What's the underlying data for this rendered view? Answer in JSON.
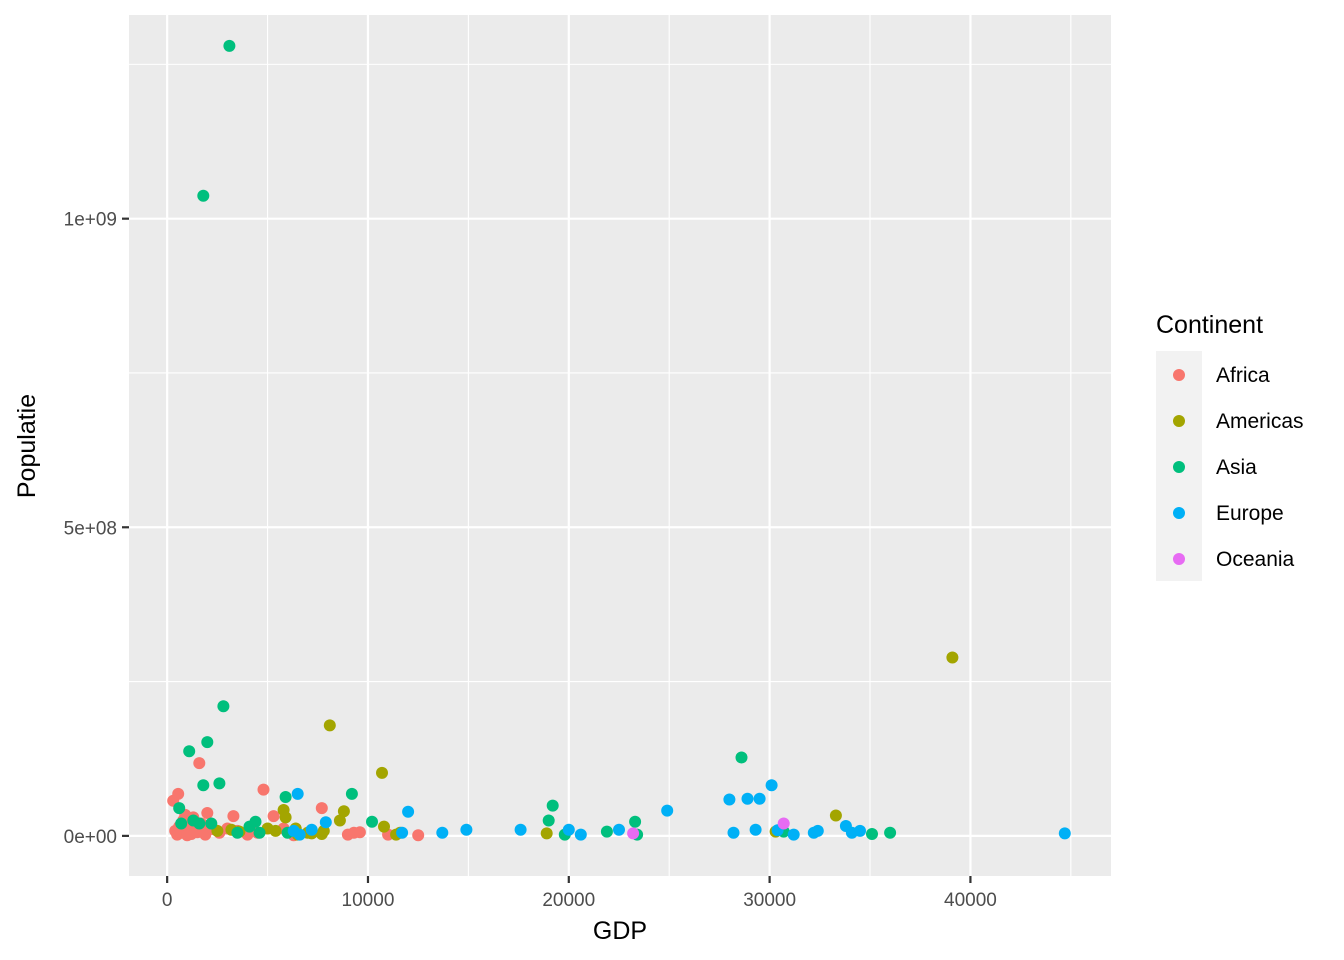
{
  "chart_data": {
    "type": "scatter",
    "xlabel": "GDP",
    "ylabel": "Populatie",
    "xlim": [
      -1900,
      47000
    ],
    "ylim": [
      -65000000,
      1330000000
    ],
    "x_ticks": [
      0,
      10000,
      20000,
      30000,
      40000
    ],
    "x_tick_labels": [
      "0",
      "10000",
      "20000",
      "30000",
      "40000"
    ],
    "y_ticks": [
      0,
      500000000,
      1000000000
    ],
    "y_tick_labels": [
      "0e+00",
      "5e+08",
      "1e+09"
    ],
    "grid": true,
    "legend": {
      "title": "Continent",
      "placement": "right"
    },
    "series": [
      {
        "name": "Africa",
        "color": "#F8766D",
        "points": [
          [
            300,
            57000000
          ],
          [
            550,
            68000000
          ],
          [
            400,
            8000000
          ],
          [
            500,
            2000000
          ],
          [
            600,
            15000000
          ],
          [
            700,
            5000000
          ],
          [
            800,
            25000000
          ],
          [
            900,
            34000000
          ],
          [
            950,
            10000000
          ],
          [
            1000,
            1000000
          ],
          [
            1100,
            20000000
          ],
          [
            1200,
            3000000
          ],
          [
            1300,
            30000000
          ],
          [
            1400,
            12000000
          ],
          [
            1500,
            6000000
          ],
          [
            1600,
            118000000
          ],
          [
            1700,
            20000000
          ],
          [
            1800,
            9000000
          ],
          [
            1900,
            2000000
          ],
          [
            2000,
            37000000
          ],
          [
            2100,
            16000000
          ],
          [
            2300,
            11000000
          ],
          [
            2600,
            5000000
          ],
          [
            3000,
            12000000
          ],
          [
            3300,
            32000000
          ],
          [
            3500,
            8000000
          ],
          [
            4000,
            2000000
          ],
          [
            4500,
            5000000
          ],
          [
            4800,
            75000000
          ],
          [
            5300,
            32000000
          ],
          [
            5800,
            12000000
          ],
          [
            6300,
            1000000
          ],
          [
            7700,
            45000000
          ],
          [
            9000,
            2000000
          ],
          [
            9300,
            5000000
          ],
          [
            9600,
            6000000
          ],
          [
            11000,
            2000000
          ],
          [
            12500,
            1000000
          ]
        ]
      },
      {
        "name": "Americas",
        "color": "#A3A500",
        "points": [
          [
            2500,
            8000000
          ],
          [
            3200,
            10000000
          ],
          [
            3600,
            7000000
          ],
          [
            5000,
            12000000
          ],
          [
            5400,
            8000000
          ],
          [
            5800,
            42000000
          ],
          [
            5900,
            30000000
          ],
          [
            6400,
            12000000
          ],
          [
            6500,
            2000000
          ],
          [
            7000,
            5000000
          ],
          [
            7200,
            4000000
          ],
          [
            7700,
            3000000
          ],
          [
            7800,
            8000000
          ],
          [
            8100,
            179000000
          ],
          [
            8600,
            25000000
          ],
          [
            8800,
            40000000
          ],
          [
            10700,
            102000000
          ],
          [
            10800,
            15000000
          ],
          [
            11400,
            2000000
          ],
          [
            11600,
            5000000
          ],
          [
            18900,
            4000000
          ],
          [
            30300,
            7000000
          ],
          [
            33300,
            33000000
          ],
          [
            39100,
            289000000
          ]
        ]
      },
      {
        "name": "Asia",
        "color": "#00BF7D",
        "points": [
          [
            600,
            45000000
          ],
          [
            700,
            20000000
          ],
          [
            1100,
            137000000
          ],
          [
            1300,
            25000000
          ],
          [
            1600,
            20000000
          ],
          [
            1800,
            82000000
          ],
          [
            1800,
            1037000000
          ],
          [
            2000,
            152000000
          ],
          [
            2200,
            20000000
          ],
          [
            2600,
            85000000
          ],
          [
            2800,
            210000000
          ],
          [
            3100,
            1280000000
          ],
          [
            3500,
            5000000
          ],
          [
            4100,
            15000000
          ],
          [
            4400,
            23000000
          ],
          [
            4600,
            5000000
          ],
          [
            5900,
            63000000
          ],
          [
            6000,
            5000000
          ],
          [
            9200,
            68000000
          ],
          [
            10200,
            23000000
          ],
          [
            19000,
            25000000
          ],
          [
            19200,
            49000000
          ],
          [
            19800,
            2000000
          ],
          [
            21900,
            7000000
          ],
          [
            23300,
            23000000
          ],
          [
            23400,
            2000000
          ],
          [
            28600,
            127000000
          ],
          [
            30700,
            7000000
          ],
          [
            35100,
            3000000
          ],
          [
            36000,
            5000000
          ]
        ]
      },
      {
        "name": "Europe",
        "color": "#00B0F6",
        "points": [
          [
            6300,
            8000000
          ],
          [
            6500,
            68000000
          ],
          [
            6600,
            2000000
          ],
          [
            7200,
            10000000
          ],
          [
            7900,
            22000000
          ],
          [
            11700,
            5000000
          ],
          [
            12000,
            39000000
          ],
          [
            13700,
            5000000
          ],
          [
            14900,
            10000000
          ],
          [
            17600,
            10000000
          ],
          [
            20000,
            10000000
          ],
          [
            20600,
            2000000
          ],
          [
            22500,
            10000000
          ],
          [
            24900,
            41000000
          ],
          [
            28000,
            59000000
          ],
          [
            28200,
            5000000
          ],
          [
            28900,
            60000000
          ],
          [
            29300,
            10000000
          ],
          [
            29500,
            60000000
          ],
          [
            30100,
            82000000
          ],
          [
            30400,
            9000000
          ],
          [
            31200,
            2000000
          ],
          [
            32200,
            5000000
          ],
          [
            32400,
            8000000
          ],
          [
            33800,
            16000000
          ],
          [
            34100,
            5000000
          ],
          [
            34500,
            8000000
          ],
          [
            44700,
            4000000
          ]
        ]
      },
      {
        "name": "Oceania",
        "color": "#E76BF3",
        "points": [
          [
            23200,
            4000000
          ],
          [
            30700,
            20000000
          ]
        ]
      }
    ]
  }
}
